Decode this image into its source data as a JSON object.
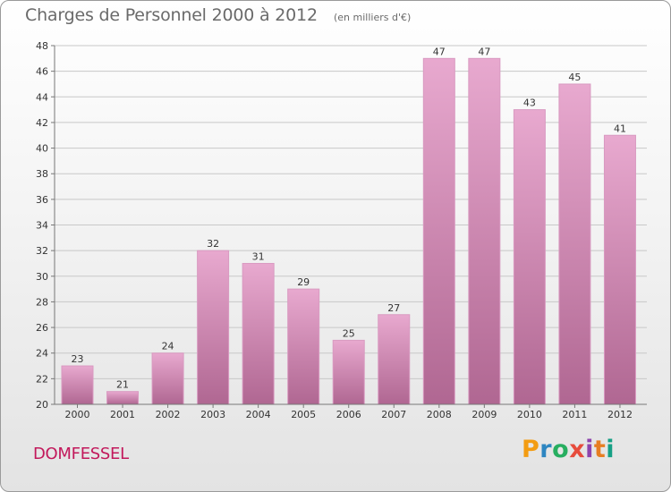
{
  "header": {
    "title": "Charges de Personnel 2000 à 2012",
    "subtitle": "(en milliers d'€)"
  },
  "footer": {
    "commune": "DOMFESSEL",
    "logo_letters": [
      "P",
      "r",
      "o",
      "x",
      "i",
      "t",
      "i"
    ],
    "logo_colors": [
      "#f39c12",
      "#2e86c1",
      "#27ae60",
      "#e74c3c",
      "#8e44ad",
      "#e67e22",
      "#16a085"
    ]
  },
  "colors": {
    "bar_top": "#e8a9cf",
    "bar_bottom": "#b06792",
    "grid": "#c8c8c8",
    "axis_text": "#333333",
    "commune": "#c2185b"
  },
  "chart_data": {
    "type": "bar",
    "categories": [
      "2000",
      "2001",
      "2002",
      "2003",
      "2004",
      "2005",
      "2006",
      "2007",
      "2008",
      "2009",
      "2010",
      "2011",
      "2012"
    ],
    "values": [
      23,
      21,
      24,
      32,
      31,
      29,
      25,
      27,
      47,
      47,
      43,
      45,
      41
    ],
    "data_labels": [
      "23",
      "21",
      "24",
      "32",
      "31",
      "29",
      "25",
      "27",
      "47",
      "47",
      "43",
      "45",
      "41"
    ],
    "y_ticks": [
      "20",
      "22",
      "24",
      "26",
      "28",
      "30",
      "32",
      "34",
      "36",
      "38",
      "40",
      "42",
      "44",
      "46",
      "48"
    ],
    "ylim": [
      20,
      48
    ],
    "grid": true,
    "title": "Charges de Personnel 2000 à 2012",
    "xlabel": "",
    "ylabel": ""
  }
}
